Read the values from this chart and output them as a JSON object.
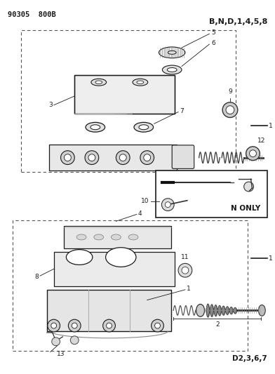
{
  "title_top_left": "90305  800B",
  "label_top_right": "B,N,D,1,4,5,8",
  "label_bottom_right": "D2,3,6,7",
  "label_n_only": "N ONLY",
  "bg_color": "#ffffff",
  "line_color": "#1a1a1a",
  "fig_w": 3.92,
  "fig_h": 5.33,
  "dpi": 100
}
